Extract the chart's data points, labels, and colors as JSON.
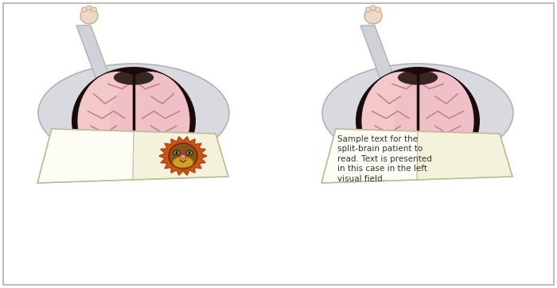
{
  "background_color": "#ffffff",
  "border_color": "#b0b0b0",
  "sample_text": "Sample text for the\nsplit-brain patient to\nread. Text is presented\nin this case in the left\nvisual field.",
  "text_color": "#333333",
  "brain_left_color": "#f2c8c8",
  "brain_right_color": "#f0c0c8",
  "brain_dark_border": "#1a0a0a",
  "brain_crease_color": "#c08080",
  "body_fill": "#d8dae0",
  "body_edge": "#b0b2b8",
  "arm_fill": "#d0d2d8",
  "hand_fill": "#f0d8c8",
  "hand_edge": "#d0a888",
  "screen_white": "#fdfcf5",
  "screen_cream": "#f5f2dc",
  "screen_edge": "#c8c4a0",
  "screen_divider": "#c0bc98",
  "lion_mane_outer": "#cc5510",
  "lion_mane_inner": "#b84010",
  "lion_face": "#8b5020",
  "lion_yellow": "#d4a020",
  "lion_pink": "#e89090",
  "lion_green": "#88b830"
}
